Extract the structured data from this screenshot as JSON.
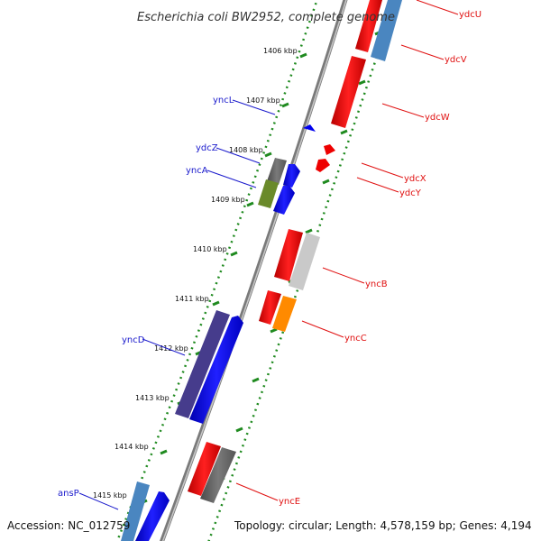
{
  "title": "Escherichia coli BW2952, complete genome",
  "accession": "Accession: NC_012759",
  "topology": "Topology: circular; Length: 4,578,159 bp; Genes: 4,194",
  "ticks": [
    "1406 kbp",
    "1407 kbp",
    "1408 kbp",
    "1409 kbp",
    "1410 kbp",
    "1411 kbp",
    "1412 kbp",
    "1413 kbp",
    "1414 kbp",
    "1415 kbp"
  ],
  "genes_left": [
    {
      "name": "yncL",
      "color": "#1a1acc"
    },
    {
      "name": "ydcZ",
      "color": "#1a1acc"
    },
    {
      "name": "yncA",
      "color": "#1a1acc"
    },
    {
      "name": "yncD",
      "color": "#1a1acc"
    },
    {
      "name": "ansP",
      "color": "#1a1acc"
    }
  ],
  "genes_right": [
    {
      "name": "ydcU",
      "color": "#e01010"
    },
    {
      "name": "ydcV",
      "color": "#e01010"
    },
    {
      "name": "ydcW",
      "color": "#e01010"
    },
    {
      "name": "ydcX",
      "color": "#e01010"
    },
    {
      "name": "ydcY",
      "color": "#e01010"
    },
    {
      "name": "yncB",
      "color": "#e01010"
    },
    {
      "name": "yncC",
      "color": "#e01010"
    },
    {
      "name": "yncE",
      "color": "#e01010"
    }
  ],
  "colors": {
    "forward_strand": "#ee0000",
    "reverse_strand": "#0000ee",
    "backbone": "#888888",
    "tick_marks": "#1f8a1f"
  }
}
